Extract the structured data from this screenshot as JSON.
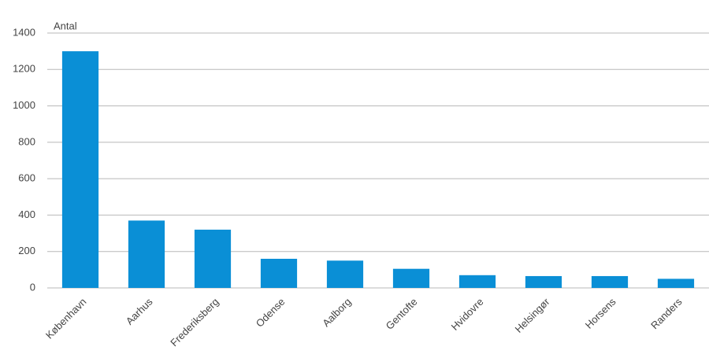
{
  "chart_data": {
    "type": "bar",
    "y_label": "Antal",
    "categories": [
      "København",
      "Aarhus",
      "Frederiksberg",
      "Odense",
      "Aalborg",
      "Gentofte",
      "Hvidovre",
      "Helsingør",
      "Horsens",
      "Randers"
    ],
    "values": [
      1300,
      370,
      320,
      160,
      150,
      105,
      70,
      65,
      65,
      50
    ],
    "color": "#0a8fd6",
    "ylim": [
      0,
      1400
    ],
    "yticks": [
      0,
      200,
      400,
      600,
      800,
      1000,
      1200,
      1400
    ],
    "grid": true
  }
}
